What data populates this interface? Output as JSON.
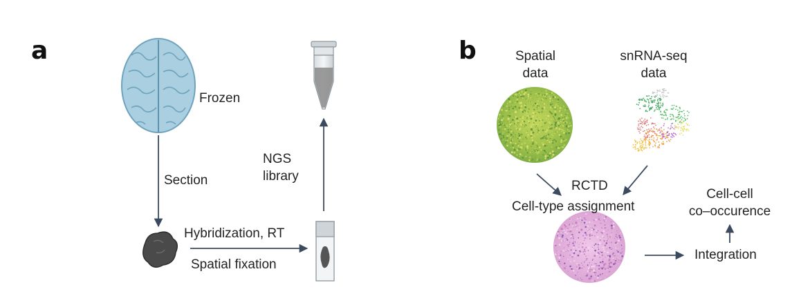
{
  "panel_a": {
    "label": "a",
    "frozen": "Frozen",
    "section": "Section",
    "hybridization": "Hybridization, RT",
    "spatial_fixation": "Spatial fixation",
    "ngs_line1": "NGS",
    "ngs_line2": "library"
  },
  "panel_b": {
    "label": "b",
    "spatial_line1": "Spatial",
    "spatial_line2": "data",
    "snrna_line1": "snRNA-seq",
    "snrna_line2": "data",
    "rctd": "RCTD",
    "cell_type_assignment": "Cell-type assignment",
    "cellcell_line1": "Cell-cell",
    "cellcell_line2": "co–occurence",
    "integration": "Integration"
  },
  "colors": {
    "arrow": "#3b4a5e",
    "brain": "#a9cfe0",
    "brain_stroke": "#6fa3bd",
    "tissue": "#4a4a4a",
    "spatial_green": "#a8c84a",
    "he_pink": "#e6b4dc"
  }
}
